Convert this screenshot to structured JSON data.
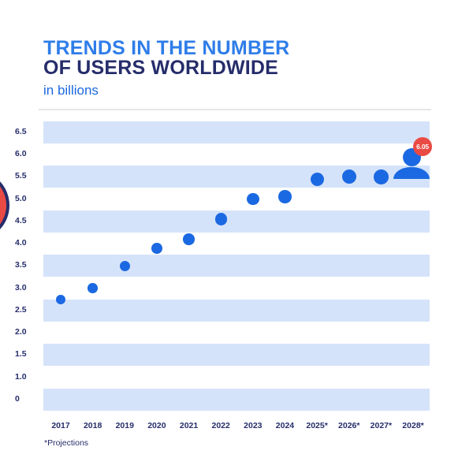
{
  "header": {
    "title_line1": "TRENDS IN THE NUMBER",
    "title_line2": "OF USERS WORLDWIDE",
    "subtitle": "in billions"
  },
  "footer": {
    "note": "*Projections"
  },
  "chart_data": {
    "type": "scatter",
    "title": "TRENDS IN THE NUMBER OF USERS WORLDWIDE",
    "subtitle": "in billions",
    "categories": [
      "2017",
      "2018",
      "2019",
      "2020",
      "2021",
      "2022",
      "2023",
      "2024",
      "2025*",
      "2026*",
      "2027*",
      "2028*"
    ],
    "values": [
      2.75,
      3.0,
      3.5,
      3.9,
      4.1,
      4.55,
      5.0,
      5.05,
      5.45,
      5.5,
      5.5,
      6.05
    ],
    "y_ticks": [
      "6.5",
      "6.0",
      "5.5",
      "5.0",
      "4.5",
      "4.0",
      "3.5",
      "3.0",
      "2.5",
      "2.0",
      "1.5",
      "1.0",
      "0"
    ],
    "highlight": {
      "category": "2028*",
      "value_label": "6.05",
      "marker": "person-icon"
    },
    "grid": "horizontal striped bands, light blue, every 0.5",
    "legend": "none",
    "marker_style": "dots growing in size left to right",
    "footnote": "*Projections"
  },
  "colors": {
    "title_blue": "#2f7de9",
    "navy": "#262d6b",
    "subtitle_blue": "#1d69e0",
    "dot_blue": "#1b69e2",
    "band_blue": "#d5e3fa",
    "badge_red": "#ea4a44",
    "topline_grey": "#e6e6e6"
  }
}
